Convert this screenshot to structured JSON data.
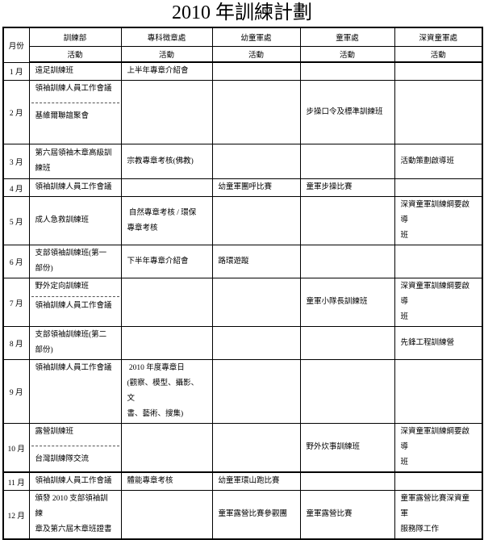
{
  "title": "2010 年訓練計劃",
  "table": {
    "month_header": "月份",
    "activity_label": "活動",
    "columns": [
      "訓練部",
      "專科徵章處",
      "幼童軍處",
      "童軍處",
      "深資童軍處"
    ],
    "rows": [
      {
        "month": "1 月",
        "cells": [
          {
            "entries": [
              "遠足訓練班"
            ]
          },
          {
            "entries": [
              "上半年專章介紹會"
            ]
          },
          {
            "entries": []
          },
          {
            "entries": []
          },
          {
            "entries": []
          }
        ]
      },
      {
        "month": "2 月",
        "cells": [
          {
            "entries": [
              "領袖訓練人員工作會議",
              "基維爾聯誼聚會"
            ],
            "valign": "top",
            "spacing": "wide"
          },
          {
            "entries": []
          },
          {
            "entries": []
          },
          {
            "entries": [
              "步操口令及標準訓練班"
            ]
          },
          {
            "entries": []
          }
        ]
      },
      {
        "month": "3 月",
        "cells": [
          {
            "entries": [
              "第六屆領袖木章高級訓\n練班"
            ]
          },
          {
            "entries": [
              "宗教專章考核(佛教)"
            ]
          },
          {
            "entries": []
          },
          {
            "entries": []
          },
          {
            "entries": [
              "活動策劃啟導班"
            ]
          }
        ]
      },
      {
        "month": "4 月",
        "cells": [
          {
            "entries": [
              "領袖訓練人員工作會議"
            ]
          },
          {
            "entries": []
          },
          {
            "entries": [
              "幼童軍團呼比賽"
            ]
          },
          {
            "entries": [
              "童軍步操比賽"
            ]
          },
          {
            "entries": []
          }
        ]
      },
      {
        "month": "5 月",
        "cells": [
          {
            "entries": [
              "成人急救訓練班"
            ]
          },
          {
            "entries": [
              " 自然專章考核 / 環保\n專章考核"
            ]
          },
          {
            "entries": []
          },
          {
            "entries": []
          },
          {
            "entries": [
              "深資童軍訓練綱要啟導\n班"
            ]
          }
        ]
      },
      {
        "month": "6 月",
        "cells": [
          {
            "entries": [
              "支部領袖訓練班(第一\n部份)"
            ]
          },
          {
            "entries": [
              "下半年專章介紹會"
            ]
          },
          {
            "entries": [
              "路環遊蹤"
            ]
          },
          {
            "entries": []
          },
          {
            "entries": []
          }
        ]
      },
      {
        "month": "7 月",
        "cells": [
          {
            "entries": [
              "野外定向訓練班",
              "領袖訓練人員工作會議"
            ],
            "valign": "top"
          },
          {
            "entries": []
          },
          {
            "entries": []
          },
          {
            "entries": [
              "童軍小隊長訓練班"
            ]
          },
          {
            "entries": [
              "深資童軍訓練綱要啟導\n班"
            ]
          }
        ]
      },
      {
        "month": "8 月",
        "cells": [
          {
            "entries": [
              "支部領袖訓練班(第二\n部份)"
            ]
          },
          {
            "entries": []
          },
          {
            "entries": []
          },
          {
            "entries": []
          },
          {
            "entries": [
              "先鋒工程訓練營"
            ]
          }
        ]
      },
      {
        "month": "9 月",
        "cells": [
          {
            "entries": [
              "領袖訓練人員工作會議"
            ],
            "valign": "top"
          },
          {
            "entries": [
              " 2010 年度專章日\n(觀察、模型、攝影、文\n書、藝術、搜集)"
            ],
            "valign": "top"
          },
          {
            "entries": []
          },
          {
            "entries": []
          },
          {
            "entries": []
          }
        ]
      },
      {
        "month": "10 月",
        "cells": [
          {
            "entries": [
              "露營訓練班",
              "台灣訓練隊交流"
            ],
            "valign": "top",
            "spacing": "wide"
          },
          {
            "entries": []
          },
          {
            "entries": []
          },
          {
            "entries": [
              "野外炊事訓練班"
            ]
          },
          {
            "entries": [
              "深資童軍訓練綱要啟導\n班"
            ]
          }
        ]
      },
      {
        "month": "11 月",
        "cells": [
          {
            "entries": [
              "領袖訓練人員工作會議"
            ]
          },
          {
            "entries": [
              "體能專章考核"
            ]
          },
          {
            "entries": [
              "幼童軍環山跑比賽"
            ]
          },
          {
            "entries": []
          },
          {
            "entries": []
          }
        ]
      },
      {
        "month": "12 月",
        "cells": [
          {
            "entries": [
              "頒發 2010 支部領袖訓練\n章及第六屆木章班證書"
            ]
          },
          {
            "entries": []
          },
          {
            "entries": [
              "童軍露營比賽參觀團"
            ]
          },
          {
            "entries": [
              "童軍露營比賽"
            ]
          },
          {
            "entries": [
              "童軍露營比賽深資童軍\n服務隊工作"
            ]
          }
        ]
      }
    ]
  }
}
